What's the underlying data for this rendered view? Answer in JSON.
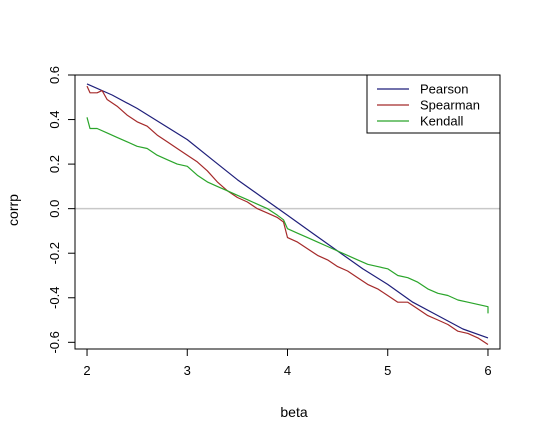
{
  "chart_data": {
    "type": "line",
    "title": "",
    "xlabel": "beta",
    "ylabel": "corrp",
    "xlim": [
      1.88,
      6.12
    ],
    "ylim": [
      -0.63,
      0.6
    ],
    "xticks": [
      2,
      3,
      4,
      5,
      6
    ],
    "yticks": [
      -0.6,
      -0.4,
      -0.2,
      0.0,
      0.2,
      0.4,
      0.6
    ],
    "xtick_labels": [
      "2",
      "3",
      "4",
      "5",
      "6"
    ],
    "ytick_labels": [
      "-0.6",
      "-0.4",
      "-0.2",
      "0.0",
      "0.2",
      "0.4",
      "0.6"
    ],
    "reference_line": {
      "y": 0.0,
      "color": "#c8c8c8"
    },
    "legend": {
      "placement": "top-right"
    },
    "grid": false,
    "series": [
      {
        "name": "Pearson",
        "color": "#1f1f7a",
        "x": [
          2.0,
          2.25,
          2.5,
          2.75,
          3.0,
          3.25,
          3.5,
          3.75,
          4.0,
          4.25,
          4.5,
          4.75,
          5.0,
          5.25,
          5.5,
          5.75,
          6.0
        ],
        "y": [
          0.56,
          0.51,
          0.45,
          0.38,
          0.31,
          0.22,
          0.13,
          0.05,
          -0.03,
          -0.11,
          -0.19,
          -0.27,
          -0.34,
          -0.42,
          -0.48,
          -0.54,
          -0.58
        ]
      },
      {
        "name": "Spearman",
        "color": "#a52a2a",
        "x": [
          2.0,
          2.03,
          2.1,
          2.15,
          2.2,
          2.3,
          2.4,
          2.5,
          2.6,
          2.7,
          2.8,
          2.9,
          3.0,
          3.1,
          3.2,
          3.3,
          3.4,
          3.5,
          3.6,
          3.7,
          3.8,
          3.9,
          3.96,
          4.0,
          4.1,
          4.2,
          4.3,
          4.4,
          4.5,
          4.6,
          4.7,
          4.8,
          4.9,
          5.0,
          5.1,
          5.2,
          5.3,
          5.4,
          5.5,
          5.6,
          5.7,
          5.8,
          5.9,
          6.0
        ],
        "y": [
          0.55,
          0.52,
          0.52,
          0.53,
          0.49,
          0.46,
          0.42,
          0.39,
          0.37,
          0.33,
          0.3,
          0.27,
          0.24,
          0.21,
          0.17,
          0.12,
          0.08,
          0.05,
          0.03,
          0.0,
          -0.02,
          -0.04,
          -0.06,
          -0.13,
          -0.15,
          -0.18,
          -0.21,
          -0.23,
          -0.26,
          -0.28,
          -0.31,
          -0.34,
          -0.36,
          -0.39,
          -0.42,
          -0.42,
          -0.45,
          -0.48,
          -0.5,
          -0.52,
          -0.55,
          -0.56,
          -0.58,
          -0.61
        ]
      },
      {
        "name": "Kendall",
        "color": "#2aa52a",
        "x": [
          2.0,
          2.03,
          2.1,
          2.2,
          2.3,
          2.4,
          2.5,
          2.6,
          2.7,
          2.8,
          2.9,
          3.0,
          3.1,
          3.2,
          3.3,
          3.4,
          3.5,
          3.6,
          3.7,
          3.8,
          3.9,
          3.96,
          4.0,
          4.1,
          4.2,
          4.3,
          4.4,
          4.5,
          4.6,
          4.7,
          4.8,
          4.9,
          5.0,
          5.1,
          5.2,
          5.3,
          5.4,
          5.5,
          5.6,
          5.7,
          5.8,
          5.9,
          6.0,
          6.0
        ],
        "y": [
          0.41,
          0.36,
          0.36,
          0.34,
          0.32,
          0.3,
          0.28,
          0.27,
          0.24,
          0.22,
          0.2,
          0.19,
          0.15,
          0.12,
          0.1,
          0.08,
          0.06,
          0.04,
          0.02,
          0.0,
          -0.03,
          -0.05,
          -0.09,
          -0.11,
          -0.13,
          -0.15,
          -0.17,
          -0.19,
          -0.21,
          -0.23,
          -0.25,
          -0.26,
          -0.27,
          -0.3,
          -0.31,
          -0.33,
          -0.36,
          -0.38,
          -0.39,
          -0.41,
          -0.42,
          -0.43,
          -0.44,
          -0.47
        ]
      }
    ]
  }
}
